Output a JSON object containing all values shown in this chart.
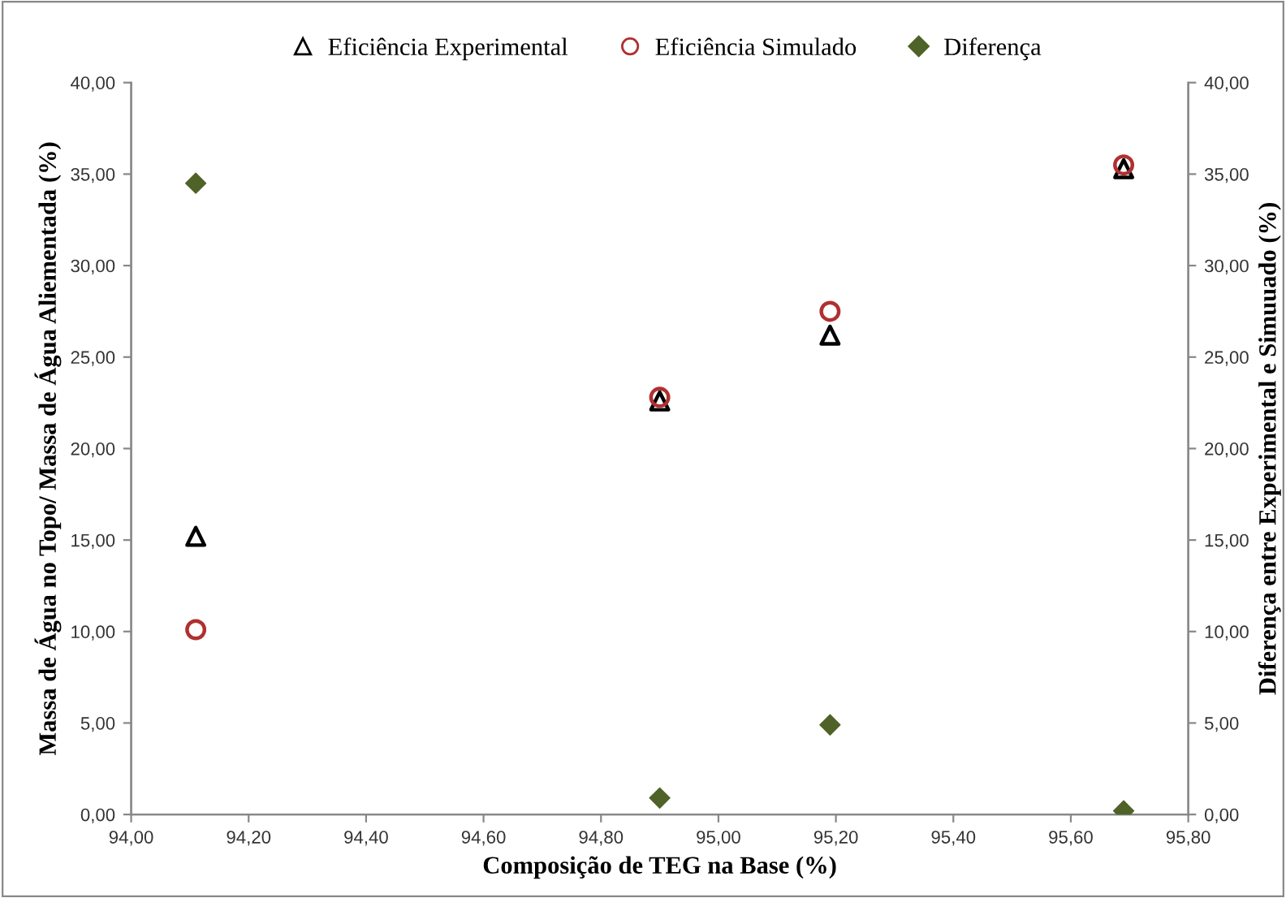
{
  "chart_data": {
    "type": "scatter",
    "xlabel": "Composição de TEG na Base (%)",
    "ylabel": "Massa de Água no Topo/ Massa de Água Aliementada (%)",
    "y2label": "Diferença entre Experimental e Simuuado (%)",
    "legend": "top",
    "grid": false,
    "xlim": [
      94.0,
      95.8
    ],
    "xticks": [
      {
        "value": 94.0,
        "label": "94,00"
      },
      {
        "value": 94.2,
        "label": "94,20"
      },
      {
        "value": 94.4,
        "label": "94,40"
      },
      {
        "value": 94.6,
        "label": "94,60"
      },
      {
        "value": 94.8,
        "label": "94,80"
      },
      {
        "value": 95.0,
        "label": "95,00"
      },
      {
        "value": 95.2,
        "label": "95,20"
      },
      {
        "value": 95.4,
        "label": "95,40"
      },
      {
        "value": 95.6,
        "label": "95,60"
      },
      {
        "value": 95.8,
        "label": "95,80"
      }
    ],
    "ylim": [
      0,
      40
    ],
    "yticks": [
      {
        "value": 0,
        "label": "0,00"
      },
      {
        "value": 5,
        "label": "5,00"
      },
      {
        "value": 10,
        "label": "10,00"
      },
      {
        "value": 15,
        "label": "15,00"
      },
      {
        "value": 20,
        "label": "20,00"
      },
      {
        "value": 25,
        "label": "25,00"
      },
      {
        "value": 30,
        "label": "30,00"
      },
      {
        "value": 35,
        "label": "35,00"
      },
      {
        "value": 40,
        "label": "40,00"
      }
    ],
    "y2lim": [
      0,
      40
    ],
    "y2ticks": [
      {
        "value": 0,
        "label": "0,00"
      },
      {
        "value": 5,
        "label": "5,00"
      },
      {
        "value": 10,
        "label": "10,00"
      },
      {
        "value": 15,
        "label": "15,00"
      },
      {
        "value": 20,
        "label": "20,00"
      },
      {
        "value": 25,
        "label": "25,00"
      },
      {
        "value": 30,
        "label": "30,00"
      },
      {
        "value": 35,
        "label": "35,00"
      },
      {
        "value": 40,
        "label": "40,00"
      }
    ],
    "x": [
      94.11,
      94.9,
      95.19,
      95.69
    ],
    "series": [
      {
        "name": "Eficiência Experimental",
        "color": "#000000",
        "marker": "triangle",
        "values": [
          15.2,
          22.6,
          26.2,
          35.3
        ]
      },
      {
        "name": "Eficiência Simulado",
        "color": "#b03030",
        "marker": "circle",
        "values": [
          10.1,
          22.8,
          27.5,
          35.5
        ]
      },
      {
        "name": "Diferença",
        "color": "#4f6228",
        "marker": "diamond",
        "axis": "y2",
        "values": [
          34.5,
          0.9,
          4.9,
          0.2
        ]
      }
    ]
  }
}
